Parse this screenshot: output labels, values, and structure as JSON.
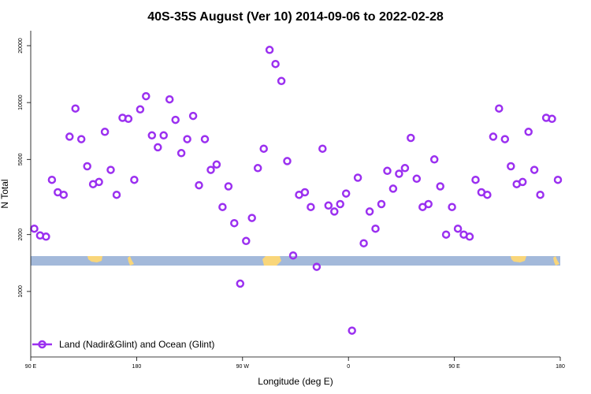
{
  "chart_data": {
    "type": "scatter",
    "title": "40S-35S August (Ver 10)   2014-09-06 to 2022-02-28",
    "xlabel": "Longitude (deg E)",
    "ylabel": "N Total",
    "x_ticks": [
      {
        "value": 90,
        "label": "90 E"
      },
      {
        "value": 180,
        "label": "180"
      },
      {
        "value": 270,
        "label": "90 W"
      },
      {
        "value": 360,
        "label": "0"
      },
      {
        "value": 450,
        "label": "90 E"
      },
      {
        "value": 540,
        "label": "180"
      }
    ],
    "y_ticks": [
      1000,
      2000,
      5000,
      10000,
      20000
    ],
    "xlim": [
      90,
      540
    ],
    "ylim": [
      450,
      24000
    ],
    "y_scale": "log",
    "grid": false,
    "legend_position": "bottom-left",
    "series": [
      {
        "name": "Land (Nadir&Glint) and Ocean (Glint)",
        "color": "#9b30f0",
        "marker": "open-circle",
        "x": [
          93,
          98,
          103,
          108,
          113,
          118,
          123,
          128,
          133,
          138,
          143,
          148,
          153,
          158,
          163,
          168,
          173,
          178,
          183,
          188,
          193,
          198,
          203,
          208,
          213,
          218,
          223,
          228,
          233,
          238,
          243,
          248,
          253,
          258,
          263,
          268,
          273,
          278,
          283,
          288,
          293,
          298,
          303,
          308,
          313,
          318,
          323,
          328,
          333,
          338,
          343,
          348,
          353,
          358,
          363,
          368,
          373,
          378,
          383,
          388,
          393,
          398,
          403,
          408,
          413,
          418,
          423,
          428,
          433,
          438,
          443,
          448,
          453,
          458,
          463,
          468,
          473,
          478,
          483,
          488,
          493,
          498,
          503,
          508,
          513,
          518,
          523,
          528,
          533,
          538
        ],
        "y": [
          2150,
          1980,
          1950,
          3900,
          3350,
          3250,
          6600,
          9300,
          6400,
          4600,
          3700,
          3800,
          7000,
          4400,
          3250,
          8300,
          8200,
          3900,
          9200,
          10800,
          6700,
          5800,
          6700,
          10400,
          8100,
          5400,
          6400,
          8500,
          3650,
          6400,
          4400,
          4700,
          2800,
          3600,
          2300,
          1100,
          1850,
          2450,
          4500,
          5700,
          19000,
          16000,
          13000,
          4900,
          1550,
          3250,
          3350,
          2800,
          1350,
          5700,
          2850,
          2650,
          2900,
          3300,
          620,
          4000,
          1800,
          2650,
          2150,
          2900,
          4350,
          3500,
          4200,
          4500,
          6500,
          3950,
          2800,
          2900,
          5000,
          3600,
          2000,
          2800,
          2150,
          2000,
          1950,
          3900,
          3350,
          3250,
          6600,
          9300,
          6400,
          4600,
          3700,
          3800,
          7000,
          4400,
          3250,
          8300,
          8200,
          3900
        ]
      }
    ]
  },
  "colors": {
    "band": "#a3b9da",
    "land": "#f9d67a"
  },
  "legend": {
    "label": "Land (Nadir&Glint) and Ocean (Glint)"
  }
}
